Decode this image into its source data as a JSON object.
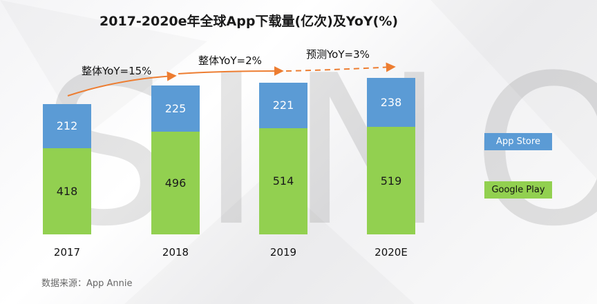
{
  "chart_data": {
    "type": "bar",
    "stacked": true,
    "title": "2017-2020e年全球App下载量(亿次)及YoY(%)",
    "categories": [
      "2017",
      "2018",
      "2019",
      "2020E"
    ],
    "series": [
      {
        "name": "Google Play",
        "color": "#92d050",
        "values": [
          418,
          496,
          514,
          519
        ]
      },
      {
        "name": "App Store",
        "color": "#5b9bd5",
        "values": [
          212,
          225,
          221,
          238
        ]
      }
    ],
    "annotations": [
      "整体YoY=15%",
      "整体YoY=2%",
      "预测YoY=3%"
    ],
    "legend": [
      "App Store",
      "Google Play"
    ],
    "ylim": [
      0,
      800
    ]
  },
  "watermark": "SINO",
  "source": "数据来源：App Annie"
}
